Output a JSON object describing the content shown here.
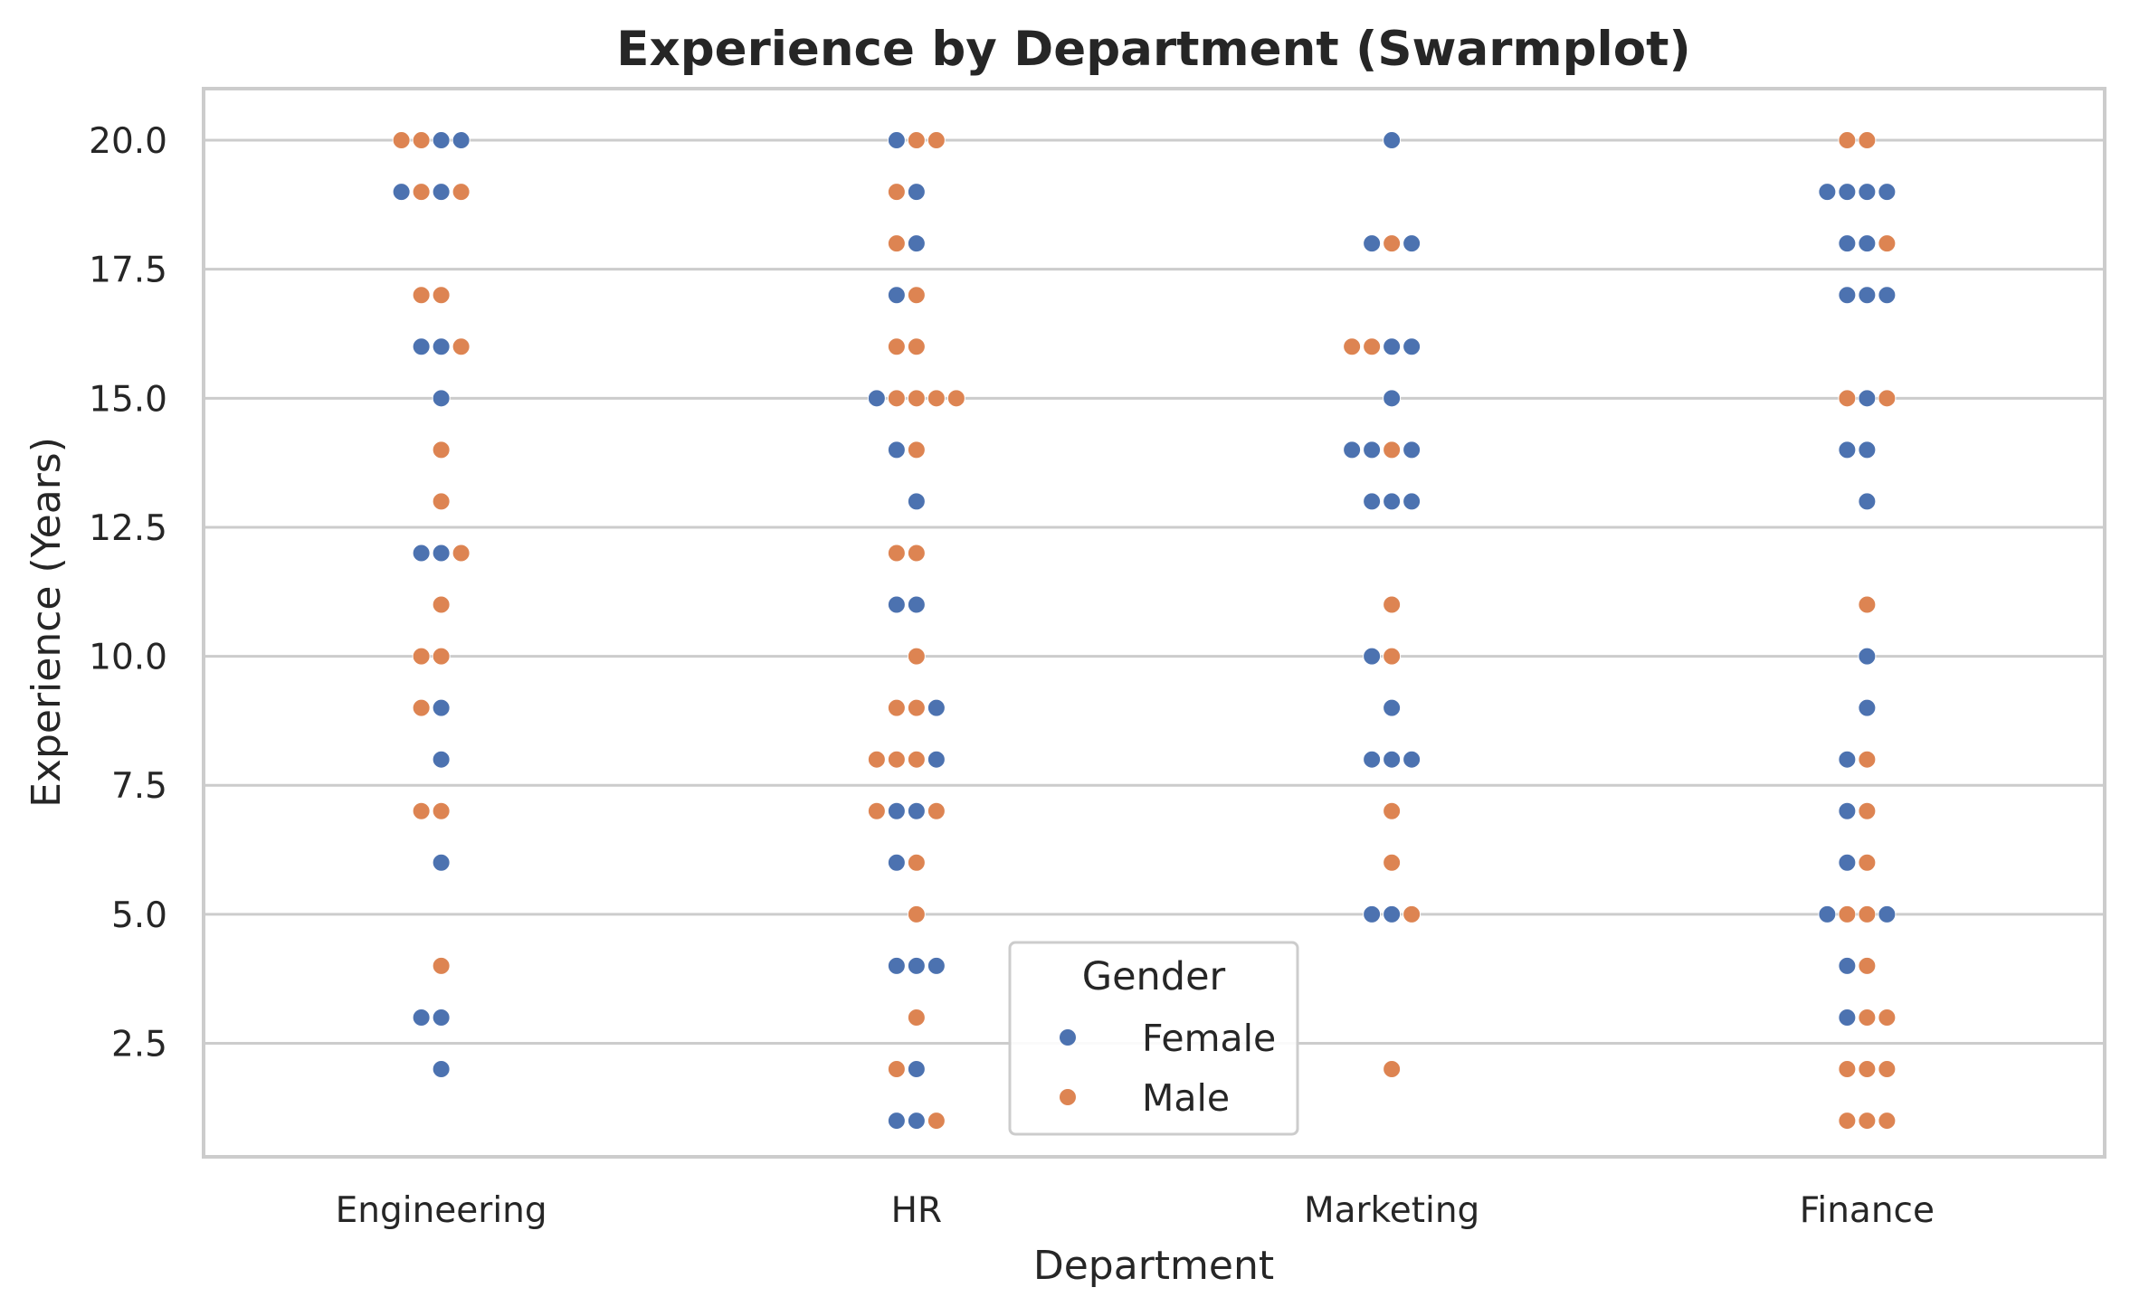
{
  "chart_data": {
    "type": "scatter",
    "subtype": "swarm",
    "title": "Experience by Department (Swarmplot)",
    "xlabel": "Department",
    "ylabel": "Experience (Years)",
    "categories": [
      "Engineering",
      "HR",
      "Marketing",
      "Finance"
    ],
    "ylim": [
      0.3,
      21.0
    ],
    "yticks": [
      2.5,
      5.0,
      7.5,
      10.0,
      12.5,
      15.0,
      17.5,
      20.0
    ],
    "ytick_labels": [
      "2.5",
      "5.0",
      "7.5",
      "10.0",
      "12.5",
      "15.0",
      "17.5",
      "20.0"
    ],
    "grid": "horizontal",
    "legend": {
      "title": "Gender",
      "placement": "lower center",
      "entries": [
        "Female",
        "Male"
      ]
    },
    "colors": {
      "Female": "#4c72b0",
      "Male": "#dd8452"
    },
    "points": {
      "Engineering": [
        {
          "y": 20,
          "g": [
            "Male",
            "Male",
            "Female",
            "Female"
          ]
        },
        {
          "y": 19,
          "g": [
            "Female",
            "Male",
            "Female",
            "Male"
          ]
        },
        {
          "y": 17,
          "g": [
            "Male",
            "Male"
          ]
        },
        {
          "y": 16,
          "g": [
            "Female",
            "Female",
            "Male"
          ]
        },
        {
          "y": 15,
          "g": [
            "Female"
          ]
        },
        {
          "y": 14,
          "g": [
            "Male"
          ]
        },
        {
          "y": 13,
          "g": [
            "Male"
          ]
        },
        {
          "y": 12,
          "g": [
            "Female",
            "Female",
            "Male"
          ]
        },
        {
          "y": 11,
          "g": [
            "Male"
          ]
        },
        {
          "y": 10,
          "g": [
            "Male",
            "Male"
          ]
        },
        {
          "y": 9,
          "g": [
            "Male",
            "Female"
          ]
        },
        {
          "y": 8,
          "g": [
            "Female"
          ]
        },
        {
          "y": 7,
          "g": [
            "Male",
            "Male"
          ]
        },
        {
          "y": 6,
          "g": [
            "Female"
          ]
        },
        {
          "y": 4,
          "g": [
            "Male"
          ]
        },
        {
          "y": 3,
          "g": [
            "Female",
            "Female"
          ]
        },
        {
          "y": 2,
          "g": [
            "Female"
          ]
        }
      ],
      "HR": [
        {
          "y": 20,
          "g": [
            "Female",
            "Male",
            "Male"
          ]
        },
        {
          "y": 19,
          "g": [
            "Male",
            "Female"
          ]
        },
        {
          "y": 18,
          "g": [
            "Male",
            "Female"
          ]
        },
        {
          "y": 17,
          "g": [
            "Female",
            "Male"
          ]
        },
        {
          "y": 16,
          "g": [
            "Male",
            "Male"
          ]
        },
        {
          "y": 15,
          "g": [
            "Female",
            "Male",
            "Male",
            "Male",
            "Male"
          ]
        },
        {
          "y": 14,
          "g": [
            "Female",
            "Male"
          ]
        },
        {
          "y": 13,
          "g": [
            "Female"
          ]
        },
        {
          "y": 12,
          "g": [
            "Male",
            "Male"
          ]
        },
        {
          "y": 11,
          "g": [
            "Female",
            "Female"
          ]
        },
        {
          "y": 10,
          "g": [
            "Male"
          ]
        },
        {
          "y": 9,
          "g": [
            "Male",
            "Male",
            "Female"
          ]
        },
        {
          "y": 8,
          "g": [
            "Male",
            "Male",
            "Male",
            "Female"
          ]
        },
        {
          "y": 7,
          "g": [
            "Male",
            "Female",
            "Female",
            "Male"
          ]
        },
        {
          "y": 6,
          "g": [
            "Female",
            "Male"
          ]
        },
        {
          "y": 5,
          "g": [
            "Male"
          ]
        },
        {
          "y": 4,
          "g": [
            "Female",
            "Female",
            "Female"
          ]
        },
        {
          "y": 3,
          "g": [
            "Male"
          ]
        },
        {
          "y": 2,
          "g": [
            "Male",
            "Female"
          ]
        },
        {
          "y": 1,
          "g": [
            "Female",
            "Female",
            "Male"
          ]
        }
      ],
      "Marketing": [
        {
          "y": 20,
          "g": [
            "Female"
          ]
        },
        {
          "y": 18,
          "g": [
            "Female",
            "Male",
            "Female"
          ]
        },
        {
          "y": 16,
          "g": [
            "Male",
            "Male",
            "Female",
            "Female"
          ]
        },
        {
          "y": 15,
          "g": [
            "Female"
          ]
        },
        {
          "y": 14,
          "g": [
            "Female",
            "Female",
            "Male",
            "Female"
          ]
        },
        {
          "y": 13,
          "g": [
            "Female",
            "Female",
            "Female"
          ]
        },
        {
          "y": 11,
          "g": [
            "Male"
          ]
        },
        {
          "y": 10,
          "g": [
            "Female",
            "Male"
          ]
        },
        {
          "y": 9,
          "g": [
            "Female"
          ]
        },
        {
          "y": 8,
          "g": [
            "Female",
            "Female",
            "Female"
          ]
        },
        {
          "y": 7,
          "g": [
            "Male"
          ]
        },
        {
          "y": 6,
          "g": [
            "Male"
          ]
        },
        {
          "y": 5,
          "g": [
            "Female",
            "Female",
            "Male"
          ]
        },
        {
          "y": 2,
          "g": [
            "Male"
          ]
        }
      ],
      "Finance": [
        {
          "y": 20,
          "g": [
            "Male",
            "Male"
          ]
        },
        {
          "y": 19,
          "g": [
            "Female",
            "Female",
            "Female",
            "Female"
          ]
        },
        {
          "y": 18,
          "g": [
            "Female",
            "Female",
            "Male"
          ]
        },
        {
          "y": 17,
          "g": [
            "Female",
            "Female",
            "Female"
          ]
        },
        {
          "y": 15,
          "g": [
            "Male",
            "Female",
            "Male"
          ]
        },
        {
          "y": 14,
          "g": [
            "Female",
            "Female"
          ]
        },
        {
          "y": 13,
          "g": [
            "Female"
          ]
        },
        {
          "y": 11,
          "g": [
            "Male"
          ]
        },
        {
          "y": 10,
          "g": [
            "Female"
          ]
        },
        {
          "y": 9,
          "g": [
            "Female"
          ]
        },
        {
          "y": 8,
          "g": [
            "Female",
            "Male"
          ]
        },
        {
          "y": 7,
          "g": [
            "Female",
            "Male"
          ]
        },
        {
          "y": 6,
          "g": [
            "Female",
            "Male"
          ]
        },
        {
          "y": 5,
          "g": [
            "Female",
            "Male",
            "Male",
            "Female"
          ]
        },
        {
          "y": 4,
          "g": [
            "Female",
            "Male"
          ]
        },
        {
          "y": 3,
          "g": [
            "Female",
            "Male",
            "Male"
          ]
        },
        {
          "y": 2,
          "g": [
            "Male",
            "Male",
            "Male"
          ]
        },
        {
          "y": 1,
          "g": [
            "Male",
            "Male",
            "Male"
          ]
        }
      ]
    }
  }
}
